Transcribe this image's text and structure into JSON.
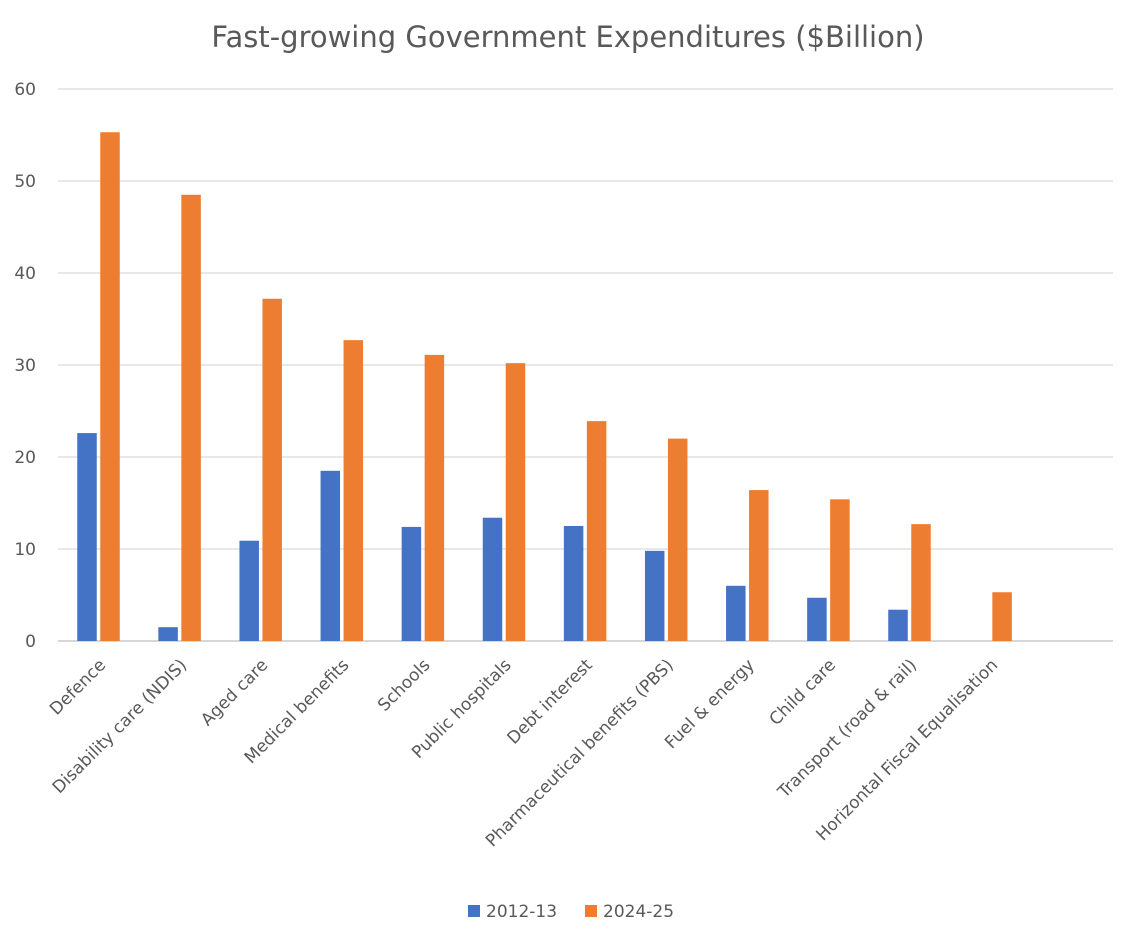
{
  "chart_data": {
    "type": "bar",
    "title": "Fast-growing Government Expenditures ($Billion)",
    "xlabel": "",
    "ylabel": "",
    "ylim": [
      0,
      60
    ],
    "yticks": [
      "0",
      "10",
      "20",
      "30",
      "40",
      "50",
      "60"
    ],
    "grid": true,
    "legend_position": "bottom",
    "categories": [
      "Defence",
      "Disability care (NDIS)",
      "Aged care",
      "Medical benefits",
      "Schools",
      "Public hospitals",
      "Debt interest",
      "Pharmaceutical benefits (PBS)",
      "Fuel & energy",
      "Child care",
      "Transport (road & rail)",
      "Horizontal Fiscal Equalisation"
    ],
    "series": [
      {
        "name": "2012-13",
        "color": "#4472C4",
        "values": [
          22.6,
          1.5,
          10.9,
          18.5,
          12.4,
          13.4,
          12.5,
          9.8,
          6.0,
          4.7,
          3.4,
          0
        ]
      },
      {
        "name": "2024-25",
        "color": "#ED7D31",
        "values": [
          55.3,
          48.5,
          37.2,
          32.7,
          31.1,
          30.2,
          23.9,
          22.0,
          16.4,
          15.4,
          12.7,
          5.3
        ]
      }
    ]
  }
}
